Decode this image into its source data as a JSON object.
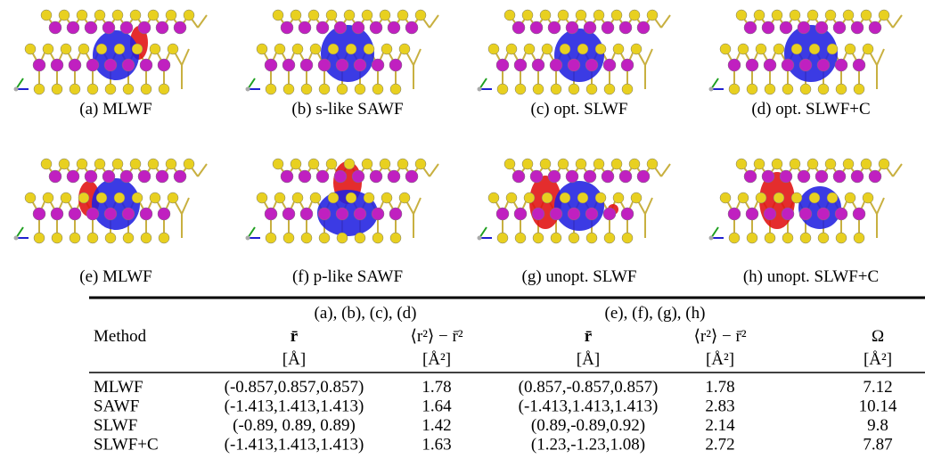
{
  "panels": [
    {
      "caption": "(a) MLWF"
    },
    {
      "caption": "(b) s-like SAWF"
    },
    {
      "caption": "(c) opt. SLWF"
    },
    {
      "caption": "(d) opt. SLWF+C"
    },
    {
      "caption": "(e) MLWF"
    },
    {
      "caption": "(f) p-like SAWF"
    },
    {
      "caption": "(g) unopt. SLWF"
    },
    {
      "caption": "(h) unopt. SLWF+C"
    }
  ],
  "table": {
    "group_headers": [
      "(a), (b), (c), (d)",
      "(e), (f), (g), (h)"
    ],
    "columns": [
      "Method",
      "r̄",
      "⟨r²⟩ − r̄²",
      "r̄",
      "⟨r²⟩ − r̄²",
      "Ω"
    ],
    "units": [
      "[Å]",
      "[Å²]",
      "[Å]",
      "[Å²]",
      "[Å²]"
    ],
    "rows": [
      [
        "MLWF",
        "(-0.857,0.857,0.857)",
        "1.78",
        "(0.857,-0.857,0.857)",
        "1.78",
        "7.12"
      ],
      [
        "SAWF",
        "(-1.413,1.413,1.413)",
        "1.64",
        "(-1.413,1.413,1.413)",
        "2.83",
        "10.14"
      ],
      [
        "SLWF",
        "(-0.89, 0.89, 0.89)",
        "1.42",
        "(0.89,-0.89,0.92)",
        "2.14",
        "9.8"
      ],
      [
        "SLWF+C",
        "(-1.413,1.413,1.413)",
        "1.63",
        "(1.23,-1.23,1.08)",
        "2.72",
        "7.87"
      ]
    ]
  }
}
